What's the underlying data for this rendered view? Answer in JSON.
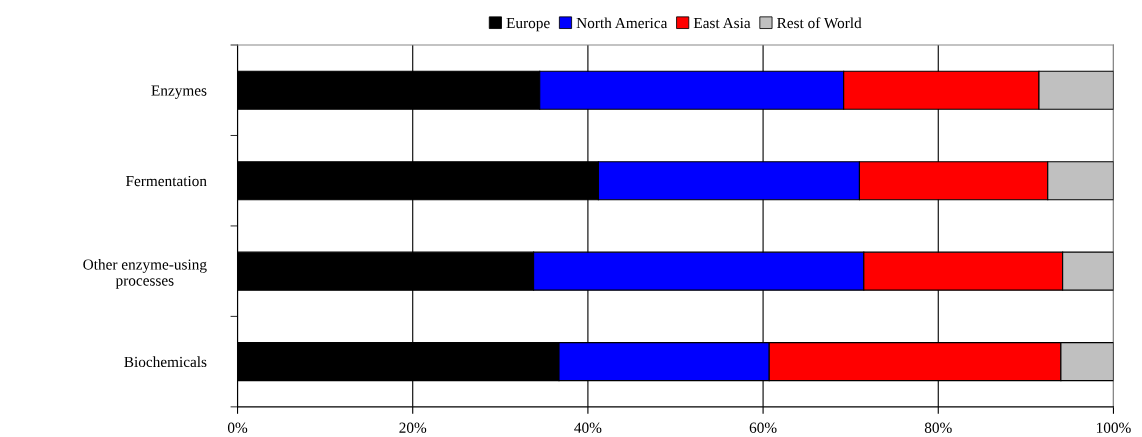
{
  "chart_data": {
    "type": "bar",
    "orientation": "horizontal",
    "stacked": true,
    "categories": [
      "Enzymes",
      "Fermentation",
      "Other enzyme-using\nprocesses",
      "Biochemicals"
    ],
    "series": [
      {
        "name": "Europe",
        "color": "#000000",
        "values": [
          34.5,
          41.2,
          33.8,
          36.7
        ]
      },
      {
        "name": "North America",
        "color": "#0000ff",
        "values": [
          34.7,
          29.8,
          37.7,
          24.0
        ]
      },
      {
        "name": "East Asia",
        "color": "#ff0000",
        "values": [
          22.3,
          21.5,
          22.7,
          33.3
        ]
      },
      {
        "name": "Rest of World",
        "color": "#c0c0c0",
        "values": [
          8.5,
          7.5,
          5.8,
          6.0
        ]
      }
    ],
    "xlim": [
      0,
      100
    ],
    "xticks": [
      {
        "value": 0,
        "label": "0%"
      },
      {
        "value": 20,
        "label": "20%"
      },
      {
        "value": 40,
        "label": "40%"
      },
      {
        "value": 60,
        "label": "60%"
      },
      {
        "value": 80,
        "label": "80%"
      },
      {
        "value": 100,
        "label": "100%"
      }
    ],
    "grid": "x",
    "legend": "top"
  }
}
